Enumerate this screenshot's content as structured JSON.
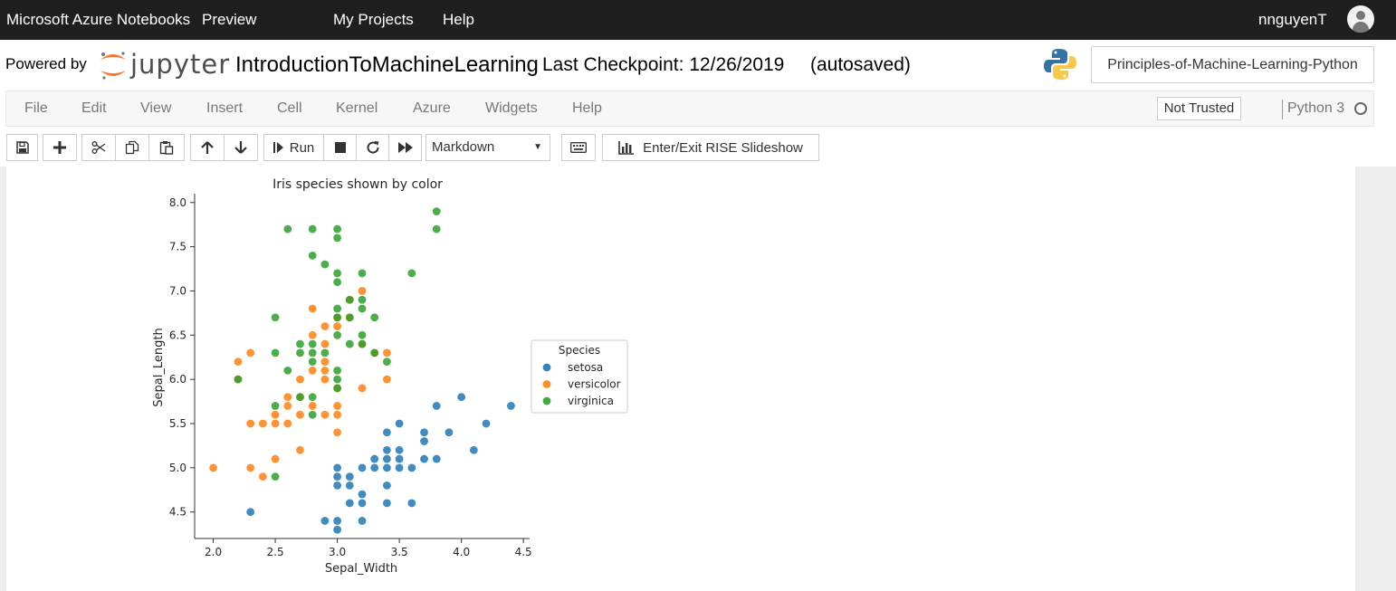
{
  "azure_bar": {
    "brand": "Microsoft Azure Notebooks",
    "preview": "Preview",
    "my_projects": "My Projects",
    "help": "Help",
    "username": "nnguyenT",
    "avatar_icon": "user-icon"
  },
  "header": {
    "powered_by": "Powered by",
    "jupyter_logo_text": "jupyter",
    "notebook_name": "IntroductionToMachineLearning",
    "checkpoint": "Last Checkpoint: 12/26/2019",
    "autosaved": "(autosaved)",
    "project_button": "Principles-of-Machine-Learning-Python"
  },
  "menu": {
    "items": [
      "File",
      "Edit",
      "View",
      "Insert",
      "Cell",
      "Kernel",
      "Azure",
      "Widgets",
      "Help"
    ],
    "not_trusted": "Not Trusted",
    "kernel": "Python 3"
  },
  "toolbar": {
    "run_label": "Run",
    "cell_type": "Markdown",
    "rise_label": "Enter/Exit RISE Slideshow"
  },
  "colors": {
    "setosa": "#1f77b4",
    "versicolor": "#ff7f0e",
    "virginica": "#2ca02c",
    "top_bar": "#1f1f1f",
    "jupyter_orange": "#f37726"
  },
  "chart_data": {
    "type": "scatter",
    "title": "Iris species shown by color",
    "xlabel": "Sepal_Width",
    "ylabel": "Sepal_Length",
    "xlim": [
      1.85,
      4.55
    ],
    "ylim": [
      4.2,
      8.1
    ],
    "xticks": [
      "2.0",
      "2.5",
      "3.0",
      "3.5",
      "4.0",
      "4.5"
    ],
    "yticks": [
      "4.5",
      "5.0",
      "5.5",
      "6.0",
      "6.5",
      "7.0",
      "7.5",
      "8.0"
    ],
    "legend_title": "Species",
    "legend_position": "right",
    "series": [
      {
        "name": "setosa",
        "color": "#1f77b4",
        "points": [
          [
            2.3,
            4.5
          ],
          [
            2.9,
            4.4
          ],
          [
            3.0,
            4.4
          ],
          [
            3.0,
            4.3
          ],
          [
            3.2,
            4.4
          ],
          [
            3.0,
            4.8
          ],
          [
            3.0,
            4.9
          ],
          [
            3.1,
            4.8
          ],
          [
            3.1,
            4.9
          ],
          [
            3.1,
            4.6
          ],
          [
            3.2,
            4.6
          ],
          [
            3.2,
            4.7
          ],
          [
            3.0,
            5.0
          ],
          [
            3.2,
            5.0
          ],
          [
            3.3,
            5.0
          ],
          [
            3.3,
            5.1
          ],
          [
            3.4,
            4.6
          ],
          [
            3.4,
            4.8
          ],
          [
            3.4,
            5.0
          ],
          [
            3.4,
            5.1
          ],
          [
            3.4,
            5.2
          ],
          [
            3.4,
            5.4
          ],
          [
            3.5,
            5.0
          ],
          [
            3.5,
            5.1
          ],
          [
            3.5,
            5.2
          ],
          [
            3.5,
            5.5
          ],
          [
            3.6,
            4.6
          ],
          [
            3.6,
            5.0
          ],
          [
            3.7,
            5.1
          ],
          [
            3.7,
            5.3
          ],
          [
            3.7,
            5.4
          ],
          [
            3.8,
            5.1
          ],
          [
            3.8,
            5.7
          ],
          [
            3.9,
            5.4
          ],
          [
            4.0,
            5.8
          ],
          [
            4.1,
            5.2
          ],
          [
            4.2,
            5.5
          ],
          [
            4.4,
            5.7
          ]
        ]
      },
      {
        "name": "versicolor",
        "color": "#ff7f0e",
        "points": [
          [
            2.0,
            5.0
          ],
          [
            2.2,
            6.2
          ],
          [
            2.2,
            6.0
          ],
          [
            2.3,
            6.3
          ],
          [
            2.3,
            5.5
          ],
          [
            2.3,
            5.0
          ],
          [
            2.4,
            5.5
          ],
          [
            2.4,
            4.9
          ],
          [
            2.5,
            5.5
          ],
          [
            2.5,
            5.6
          ],
          [
            2.5,
            5.1
          ],
          [
            2.6,
            5.5
          ],
          [
            2.6,
            5.7
          ],
          [
            2.6,
            5.8
          ],
          [
            2.7,
            5.2
          ],
          [
            2.7,
            5.6
          ],
          [
            2.7,
            6.0
          ],
          [
            2.7,
            5.8
          ],
          [
            2.8,
            5.7
          ],
          [
            2.8,
            6.1
          ],
          [
            2.8,
            6.5
          ],
          [
            2.8,
            6.8
          ],
          [
            2.9,
            5.6
          ],
          [
            2.9,
            6.0
          ],
          [
            2.9,
            6.1
          ],
          [
            2.9,
            6.2
          ],
          [
            2.9,
            6.4
          ],
          [
            2.9,
            6.6
          ],
          [
            3.0,
            5.4
          ],
          [
            3.0,
            5.6
          ],
          [
            3.0,
            5.7
          ],
          [
            3.0,
            6.6
          ],
          [
            3.0,
            6.7
          ],
          [
            3.0,
            5.9
          ],
          [
            3.1,
            6.9
          ],
          [
            3.1,
            6.7
          ],
          [
            3.2,
            5.9
          ],
          [
            3.2,
            7.0
          ],
          [
            3.2,
            6.4
          ],
          [
            3.3,
            6.3
          ],
          [
            3.4,
            6.0
          ],
          [
            3.4,
            6.3
          ]
        ]
      },
      {
        "name": "virginica",
        "color": "#2ca02c",
        "points": [
          [
            2.2,
            6.0
          ],
          [
            2.5,
            4.9
          ],
          [
            2.5,
            5.7
          ],
          [
            2.5,
            6.3
          ],
          [
            2.5,
            6.7
          ],
          [
            2.6,
            6.1
          ],
          [
            2.6,
            7.7
          ],
          [
            2.7,
            5.8
          ],
          [
            2.7,
            6.3
          ],
          [
            2.7,
            6.4
          ],
          [
            2.8,
            5.6
          ],
          [
            2.8,
            5.8
          ],
          [
            2.8,
            6.2
          ],
          [
            2.8,
            6.3
          ],
          [
            2.8,
            6.4
          ],
          [
            2.8,
            7.4
          ],
          [
            2.8,
            7.7
          ],
          [
            2.9,
            6.3
          ],
          [
            2.9,
            7.3
          ],
          [
            3.0,
            5.9
          ],
          [
            3.0,
            6.0
          ],
          [
            3.0,
            6.1
          ],
          [
            3.0,
            6.5
          ],
          [
            3.0,
            6.7
          ],
          [
            3.0,
            6.8
          ],
          [
            3.0,
            7.1
          ],
          [
            3.0,
            7.2
          ],
          [
            3.0,
            7.6
          ],
          [
            3.0,
            7.7
          ],
          [
            3.1,
            6.4
          ],
          [
            3.1,
            6.7
          ],
          [
            3.1,
            6.9
          ],
          [
            3.2,
            6.4
          ],
          [
            3.2,
            6.5
          ],
          [
            3.2,
            6.8
          ],
          [
            3.2,
            6.9
          ],
          [
            3.2,
            7.2
          ],
          [
            3.3,
            6.3
          ],
          [
            3.3,
            6.7
          ],
          [
            3.4,
            6.2
          ],
          [
            3.6,
            7.2
          ],
          [
            3.8,
            7.7
          ],
          [
            3.8,
            7.9
          ]
        ]
      }
    ]
  }
}
